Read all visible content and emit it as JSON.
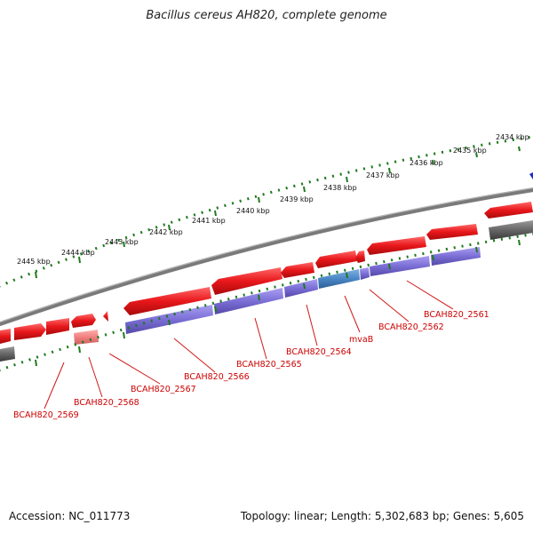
{
  "title": "Bacillus cereus AH820, complete genome",
  "footer": {
    "accession": "Accession: NC_011773",
    "summary": "Topology: linear; Length: 5,302,683 bp; Genes: 5,605"
  },
  "ruler_labels": [
    "2434 kbp",
    "2435 kbp",
    "2436 kbp",
    "2437 kbp",
    "2438 kbp",
    "2439 kbp",
    "2440 kbp",
    "2441 kbp",
    "2442 kbp",
    "2443 kbp",
    "2444 kbp",
    "2445 kbp"
  ],
  "gene_labels": [
    "BCAH820_2561",
    "BCAH820_2562",
    "mvaB",
    "BCAH820_2564",
    "BCAH820_2565",
    "BCAH820_2566",
    "BCAH820_2567",
    "BCAH820_2568",
    "BCAH820_2569"
  ],
  "colors": {
    "gene_red": "#e8171b",
    "cds_purple": "#7b6fd6",
    "highlight_blue": "#4a86c5",
    "backbone_gray": "#7a7a7a",
    "tick_green": "#1e7a1e",
    "label_red": "#cc0000",
    "marker_blue": "#1a2ad6"
  }
}
